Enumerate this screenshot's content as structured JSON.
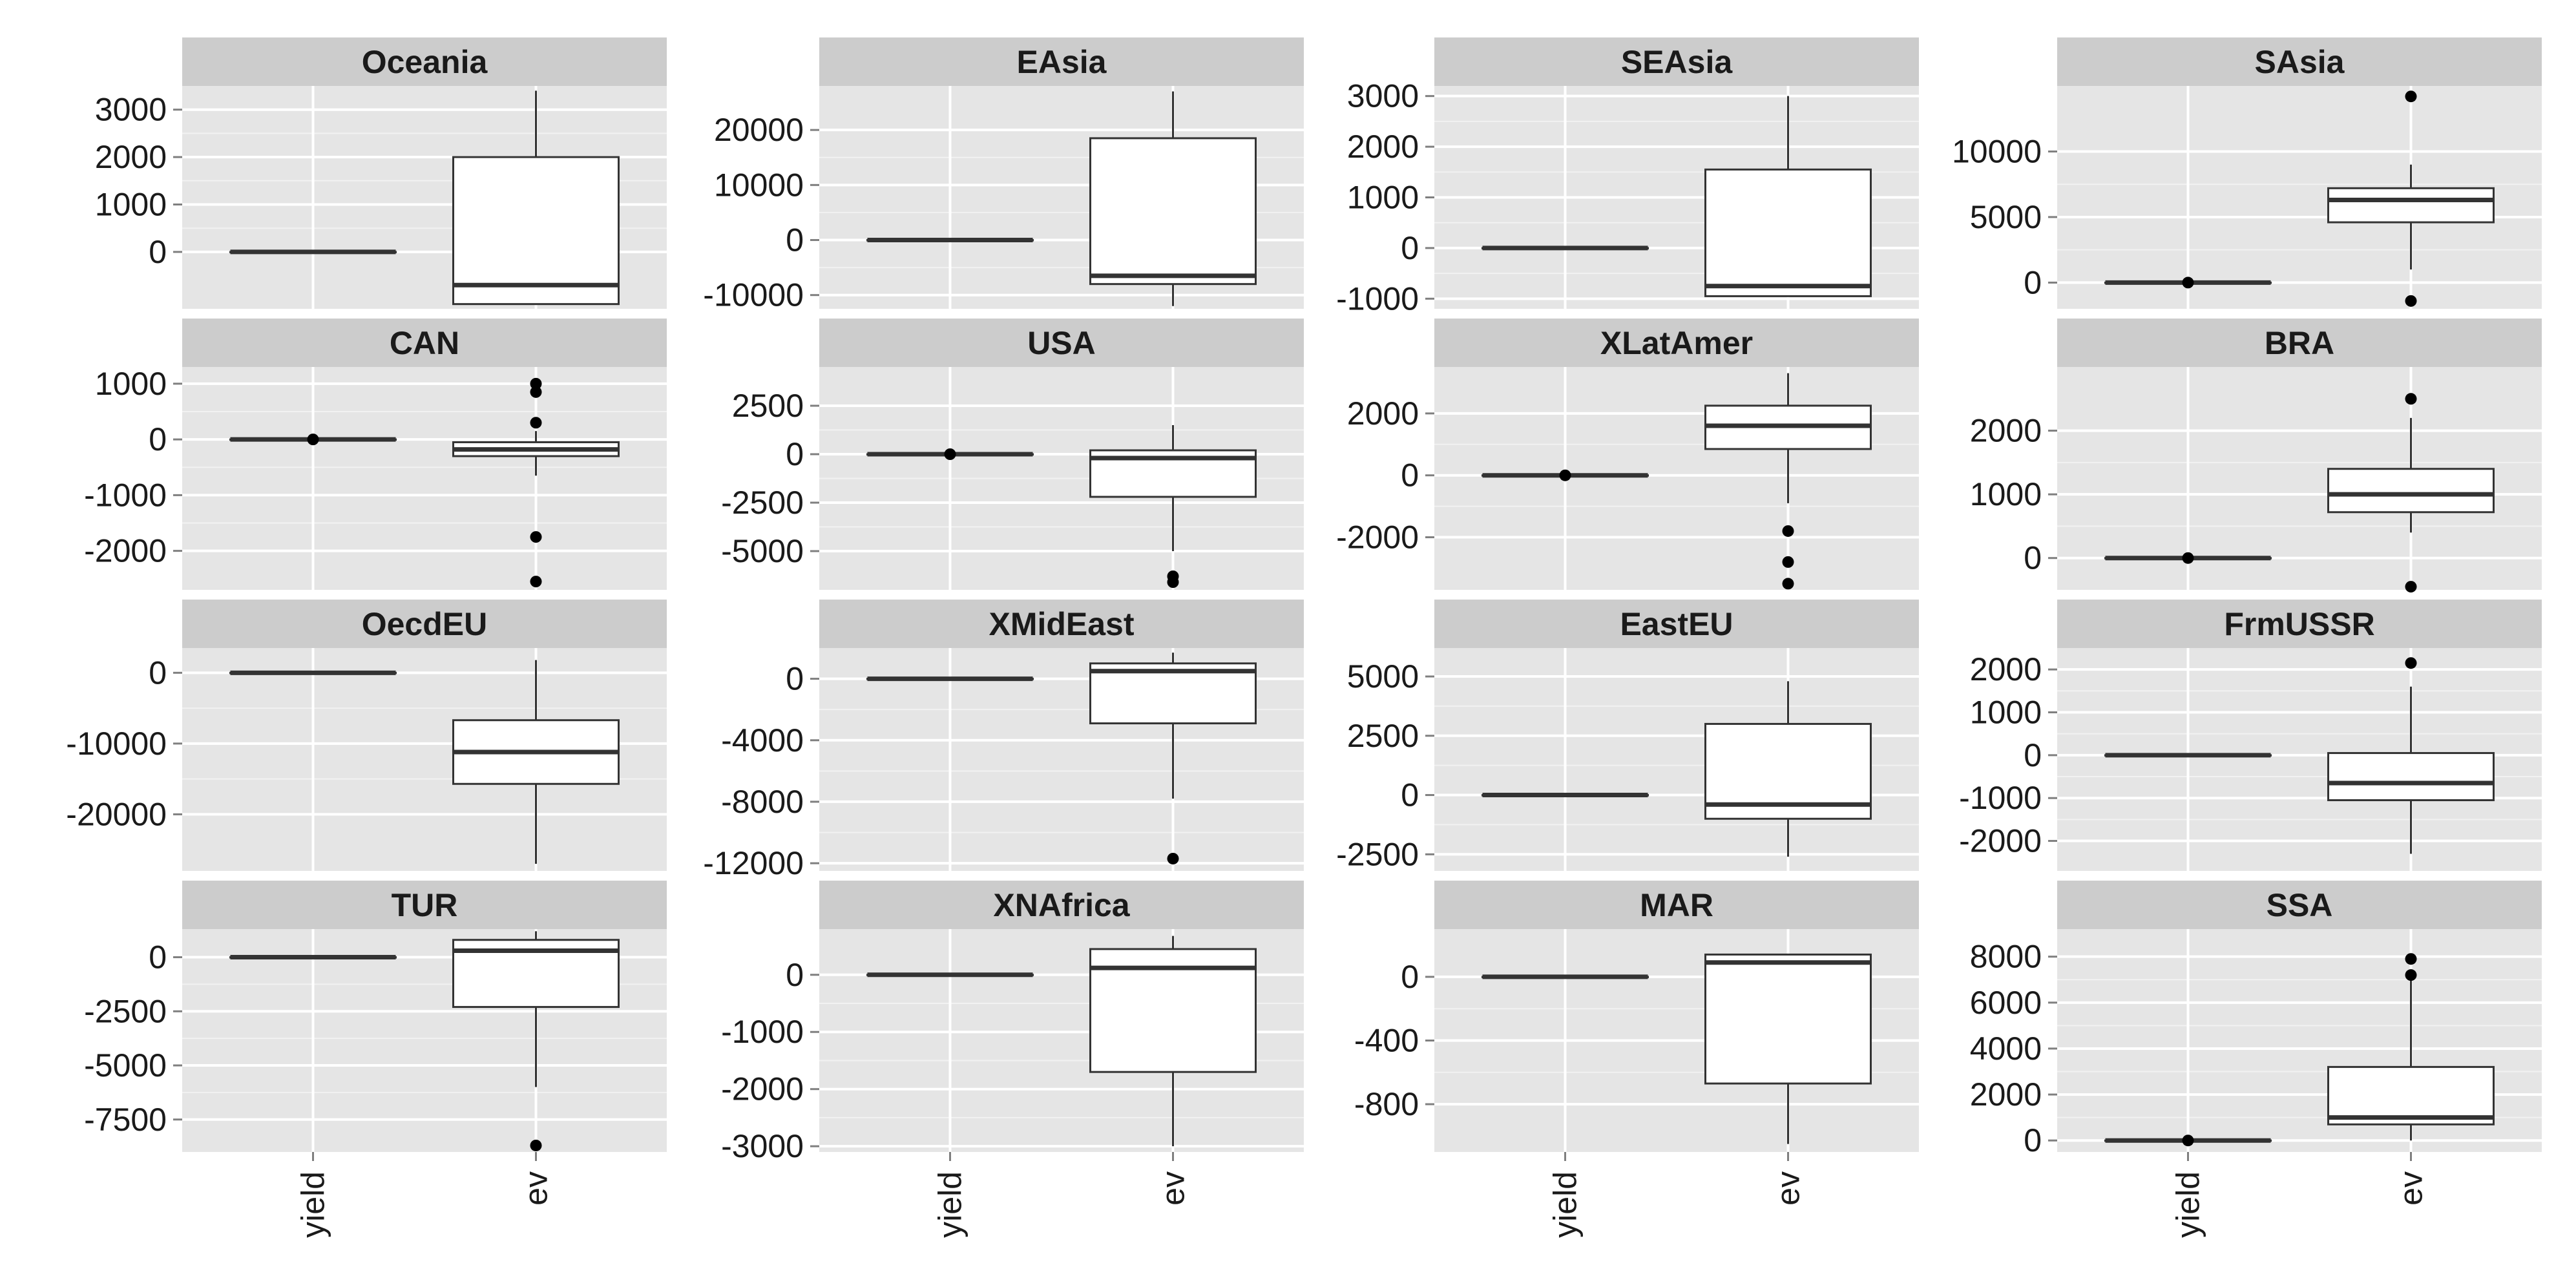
{
  "chart_data": {
    "type": "boxplot",
    "layout": "facet-grid 4x4, free y scales",
    "categories": [
      "yield",
      "ev"
    ],
    "background": "#e5e5e5",
    "strip_color": "#cccccc",
    "grid": true,
    "panels": [
      {
        "title": "Oceania",
        "ylim": [
          -1200,
          3500
        ],
        "yticks": [
          0,
          1000,
          2000,
          3000
        ],
        "boxes": [
          {
            "category": "yield",
            "whisker_low": 0,
            "q1": 0,
            "median": 0,
            "q3": 0,
            "whisker_high": 0,
            "outliers": []
          },
          {
            "category": "ev",
            "whisker_low": -1100,
            "q1": -1100,
            "median": -700,
            "q3": 2000,
            "whisker_high": 3400,
            "outliers": []
          }
        ]
      },
      {
        "title": "EAsia",
        "ylim": [
          -12500,
          28000
        ],
        "yticks": [
          -10000,
          0,
          10000,
          20000
        ],
        "boxes": [
          {
            "category": "yield",
            "whisker_low": 0,
            "q1": 0,
            "median": 0,
            "q3": 0,
            "whisker_high": 0,
            "outliers": []
          },
          {
            "category": "ev",
            "whisker_low": -12000,
            "q1": -8000,
            "median": -6500,
            "q3": 18500,
            "whisker_high": 27000,
            "outliers": []
          }
        ]
      },
      {
        "title": "SEAsia",
        "ylim": [
          -1200,
          3200
        ],
        "yticks": [
          -1000,
          0,
          1000,
          2000,
          3000
        ],
        "boxes": [
          {
            "category": "yield",
            "whisker_low": 0,
            "q1": 0,
            "median": 0,
            "q3": 0,
            "whisker_high": 0,
            "outliers": []
          },
          {
            "category": "ev",
            "whisker_low": -950,
            "q1": -950,
            "median": -750,
            "q3": 1550,
            "whisker_high": 3000,
            "outliers": []
          }
        ]
      },
      {
        "title": "SAsia",
        "ylim": [
          -2000,
          15000
        ],
        "yticks": [
          0,
          5000,
          10000
        ],
        "boxes": [
          {
            "category": "yield",
            "whisker_low": 0,
            "q1": 0,
            "median": 0,
            "q3": 0,
            "whisker_high": 0,
            "outliers": [
              0
            ]
          },
          {
            "category": "ev",
            "whisker_low": 1000,
            "q1": 4600,
            "median": 6300,
            "q3": 7200,
            "whisker_high": 9000,
            "outliers": [
              14200,
              -1400
            ]
          }
        ]
      },
      {
        "title": "CAN",
        "ylim": [
          -2700,
          1300
        ],
        "yticks": [
          -2000,
          -1000,
          0,
          1000
        ],
        "boxes": [
          {
            "category": "yield",
            "whisker_low": 0,
            "q1": 0,
            "median": 0,
            "q3": 0,
            "whisker_high": 0,
            "outliers": [
              0
            ]
          },
          {
            "category": "ev",
            "whisker_low": -650,
            "q1": -300,
            "median": -180,
            "q3": -50,
            "whisker_high": 150,
            "outliers": [
              1000,
              850,
              300,
              -1750,
              -2550
            ]
          }
        ]
      },
      {
        "title": "USA",
        "ylim": [
          -7000,
          4500
        ],
        "yticks": [
          -5000,
          -2500,
          0,
          2500
        ],
        "boxes": [
          {
            "category": "yield",
            "whisker_low": 0,
            "q1": 0,
            "median": 0,
            "q3": 0,
            "whisker_high": 0,
            "outliers": [
              0
            ]
          },
          {
            "category": "ev",
            "whisker_low": -5000,
            "q1": -2200,
            "median": -200,
            "q3": 200,
            "whisker_high": 1500,
            "outliers": [
              -6300,
              -6600
            ]
          }
        ]
      },
      {
        "title": "XLatAmer",
        "ylim": [
          -3700,
          3500
        ],
        "yticks": [
          -2000,
          0,
          2000
        ],
        "boxes": [
          {
            "category": "yield",
            "whisker_low": 0,
            "q1": 0,
            "median": 0,
            "q3": 0,
            "whisker_high": 0,
            "outliers": [
              0
            ]
          },
          {
            "category": "ev",
            "whisker_low": -900,
            "q1": 850,
            "median": 1600,
            "q3": 2250,
            "whisker_high": 3300,
            "outliers": [
              -1800,
              -2800,
              -3500
            ]
          }
        ]
      },
      {
        "title": "BRA",
        "ylim": [
          -500,
          3000
        ],
        "yticks": [
          0,
          1000,
          2000
        ],
        "boxes": [
          {
            "category": "yield",
            "whisker_low": 0,
            "q1": 0,
            "median": 0,
            "q3": 0,
            "whisker_high": 0,
            "outliers": [
              0
            ]
          },
          {
            "category": "ev",
            "whisker_low": 400,
            "q1": 720,
            "median": 1000,
            "q3": 1400,
            "whisker_high": 2200,
            "outliers": [
              2500,
              -450
            ]
          }
        ]
      },
      {
        "title": "OecdEU",
        "ylim": [
          -28000,
          3500
        ],
        "yticks": [
          -20000,
          -10000,
          0
        ],
        "boxes": [
          {
            "category": "yield",
            "whisker_low": 0,
            "q1": 0,
            "median": 0,
            "q3": 0,
            "whisker_high": 0,
            "outliers": []
          },
          {
            "category": "ev",
            "whisker_low": -27000,
            "q1": -15700,
            "median": -11200,
            "q3": -6700,
            "whisker_high": 1800,
            "outliers": []
          }
        ]
      },
      {
        "title": "XMidEast",
        "ylim": [
          -12500,
          2000
        ],
        "yticks": [
          -12000,
          -8000,
          -4000,
          0
        ],
        "boxes": [
          {
            "category": "yield",
            "whisker_low": 0,
            "q1": 0,
            "median": 0,
            "q3": 0,
            "whisker_high": 0,
            "outliers": []
          },
          {
            "category": "ev",
            "whisker_low": -7800,
            "q1": -2900,
            "median": 500,
            "q3": 1000,
            "whisker_high": 1700,
            "outliers": [
              -11700
            ]
          }
        ]
      },
      {
        "title": "EastEU",
        "ylim": [
          -3200,
          6200
        ],
        "yticks": [
          -2500,
          0,
          2500,
          5000
        ],
        "boxes": [
          {
            "category": "yield",
            "whisker_low": 0,
            "q1": 0,
            "median": 0,
            "q3": 0,
            "whisker_high": 0,
            "outliers": []
          },
          {
            "category": "ev",
            "whisker_low": -2600,
            "q1": -1000,
            "median": -400,
            "q3": 3000,
            "whisker_high": 4800,
            "outliers": []
          }
        ]
      },
      {
        "title": "FrmUSSR",
        "ylim": [
          -2700,
          2500
        ],
        "yticks": [
          -2000,
          -1000,
          0,
          1000,
          2000
        ],
        "boxes": [
          {
            "category": "yield",
            "whisker_low": 0,
            "q1": 0,
            "median": 0,
            "q3": 0,
            "whisker_high": 0,
            "outliers": []
          },
          {
            "category": "ev",
            "whisker_low": -2300,
            "q1": -1050,
            "median": -650,
            "q3": 50,
            "whisker_high": 1600,
            "outliers": [
              2150
            ]
          }
        ]
      },
      {
        "title": "TUR",
        "ylim": [
          -9000,
          1300
        ],
        "yticks": [
          -7500,
          -5000,
          -2500,
          0
        ],
        "boxes": [
          {
            "category": "yield",
            "whisker_low": 0,
            "q1": 0,
            "median": 0,
            "q3": 0,
            "whisker_high": 0,
            "outliers": []
          },
          {
            "category": "ev",
            "whisker_low": -6000,
            "q1": -2300,
            "median": 300,
            "q3": 800,
            "whisker_high": 1200,
            "outliers": [
              -8700
            ]
          }
        ]
      },
      {
        "title": "XNAfrica",
        "ylim": [
          -3100,
          800
        ],
        "yticks": [
          -3000,
          -2000,
          -1000,
          0
        ],
        "boxes": [
          {
            "category": "yield",
            "whisker_low": 0,
            "q1": 0,
            "median": 0,
            "q3": 0,
            "whisker_high": 0,
            "outliers": []
          },
          {
            "category": "ev",
            "whisker_low": -3000,
            "q1": -1700,
            "median": 120,
            "q3": 450,
            "whisker_high": 680,
            "outliers": []
          }
        ]
      },
      {
        "title": "MAR",
        "ylim": [
          -1100,
          300
        ],
        "yticks": [
          -800,
          -400,
          0
        ],
        "boxes": [
          {
            "category": "yield",
            "whisker_low": 0,
            "q1": 0,
            "median": 0,
            "q3": 0,
            "whisker_high": 0,
            "outliers": []
          },
          {
            "category": "ev",
            "whisker_low": -1050,
            "q1": -670,
            "median": 90,
            "q3": 140,
            "whisker_high": 145,
            "outliers": []
          }
        ]
      },
      {
        "title": "SSA",
        "ylim": [
          -500,
          9200
        ],
        "yticks": [
          0,
          2000,
          4000,
          6000,
          8000
        ],
        "boxes": [
          {
            "category": "yield",
            "whisker_low": 0,
            "q1": 0,
            "median": 0,
            "q3": 0,
            "whisker_high": 0,
            "outliers": [
              0
            ]
          },
          {
            "category": "ev",
            "whisker_low": 0,
            "q1": 700,
            "median": 1000,
            "q3": 3200,
            "whisker_high": 7000,
            "outliers": [
              7900,
              7200
            ]
          }
        ]
      }
    ]
  }
}
